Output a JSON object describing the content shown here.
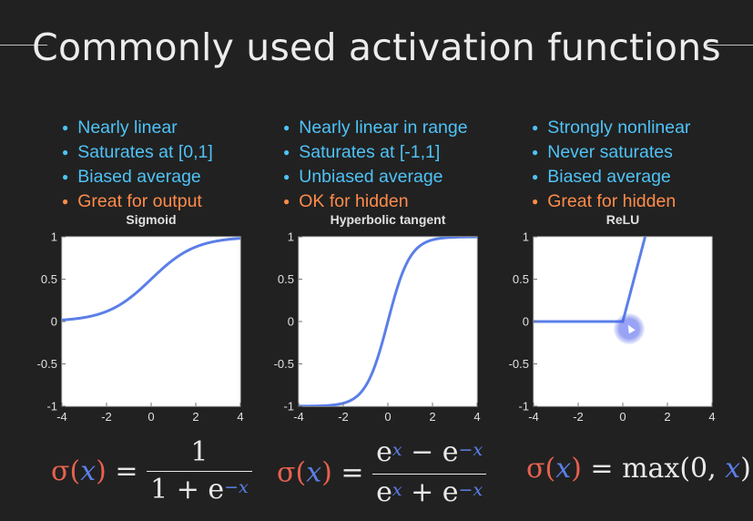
{
  "title": "Commonly used activation functions",
  "columns": [
    {
      "bullets": [
        {
          "text": "Nearly linear",
          "color": "#4fc3f7"
        },
        {
          "text": "Saturates at [0,1]",
          "color": "#4fc3f7"
        },
        {
          "text": "Biased average",
          "color": "#4fc3f7"
        },
        {
          "text": "Great for output",
          "color": "#ff8c4a"
        }
      ]
    },
    {
      "bullets": [
        {
          "text": "Nearly linear in range",
          "color": "#4fc3f7"
        },
        {
          "text": "Saturates at [-1,1]",
          "color": "#4fc3f7"
        },
        {
          "text": "Unbiased average",
          "color": "#4fc3f7"
        },
        {
          "text": "OK for hidden",
          "color": "#ff8c4a"
        }
      ]
    },
    {
      "bullets": [
        {
          "text": "Strongly nonlinear",
          "color": "#4fc3f7"
        },
        {
          "text": "Never saturates",
          "color": "#4fc3f7"
        },
        {
          "text": "Biased average",
          "color": "#4fc3f7"
        },
        {
          "text": "Great for hidden",
          "color": "#ff8c4a"
        }
      ]
    }
  ],
  "chart_data": [
    {
      "type": "line",
      "title": "Sigmoid",
      "function": "sigmoid",
      "xlim": [
        -4,
        4
      ],
      "ylim": [
        -1,
        1
      ],
      "xticks": [
        "-4",
        "-2",
        "0",
        "2",
        "4"
      ],
      "yticks": [
        "1",
        "0.5",
        "0",
        "-0.5",
        "-1"
      ],
      "x": [
        -4,
        -3,
        -2,
        -1,
        0,
        1,
        2,
        3,
        4
      ],
      "y": [
        0.018,
        0.047,
        0.119,
        0.269,
        0.5,
        0.731,
        0.881,
        0.953,
        0.982
      ],
      "line_color": "#5b7fe8",
      "grid": false
    },
    {
      "type": "line",
      "title": "Hyperbolic tangent",
      "function": "tanh",
      "xlim": [
        -4,
        4
      ],
      "ylim": [
        -1,
        1
      ],
      "xticks": [
        "-4",
        "-2",
        "0",
        "2",
        "4"
      ],
      "yticks": [
        "1",
        "0.5",
        "0",
        "-0.5",
        "-1"
      ],
      "x": [
        -4,
        -3,
        -2,
        -1,
        0,
        1,
        2,
        3,
        4
      ],
      "y": [
        -0.999,
        -0.995,
        -0.964,
        -0.762,
        0,
        0.762,
        0.964,
        0.995,
        0.999
      ],
      "line_color": "#5b7fe8",
      "grid": false
    },
    {
      "type": "line",
      "title": "ReLU",
      "function": "relu",
      "xlim": [
        -4,
        4
      ],
      "ylim": [
        -1,
        1
      ],
      "xticks": [
        "-4",
        "-2",
        "0",
        "2",
        "4"
      ],
      "yticks": [
        "1",
        "0.5",
        "0",
        "-0.5",
        "-1"
      ],
      "x": [
        -4,
        -2,
        0,
        1
      ],
      "y": [
        0,
        0,
        0,
        1
      ],
      "line_color": "#5b7fe8",
      "grid": false
    }
  ],
  "formulas": {
    "sigmoid": {
      "lhs_fn": "σ",
      "lhs_var": "x",
      "eq": "=",
      "num": "1",
      "den_a": "1 + e",
      "den_exp": "−x"
    },
    "tanh": {
      "lhs_fn": "σ",
      "lhs_var": "x",
      "eq": "=",
      "num_a": "e",
      "num_exp1": "x",
      "num_mid": " − e",
      "num_exp2": "−x",
      "den_a": "e",
      "den_exp1": "x",
      "den_mid": " + e",
      "den_exp2": "−x"
    },
    "relu": {
      "lhs_fn": "σ",
      "lhs_var": "x",
      "eq": "=",
      "rhs_a": "max(0, ",
      "rhs_var": "x",
      "rhs_b": ")"
    }
  },
  "colors": {
    "background": "#212121",
    "bullet_blue": "#4fc3f7",
    "bullet_orange": "#ff8c4a",
    "curve": "#5b7fe8",
    "sigma": "#e8614f",
    "plot_bg": "#ffffff"
  }
}
